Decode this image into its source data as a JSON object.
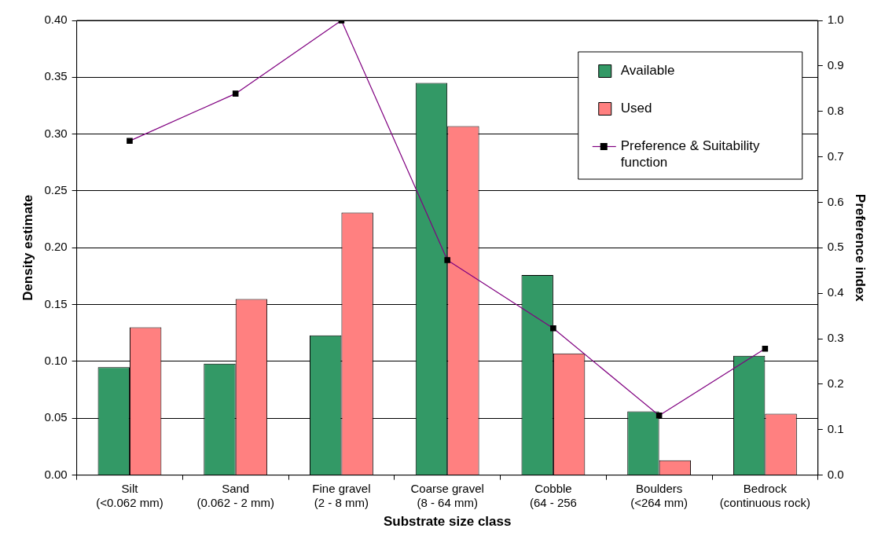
{
  "chart_data": {
    "type": "bar",
    "xlabel": "Substrate size class",
    "ylabel": "Density estimate",
    "y2label": "Preference index",
    "categories": [
      "Silt\n(<0.062 mm)",
      "Sand\n(0.062 - 2 mm)",
      "Fine gravel\n(2 - 8 mm)",
      "Coarse gravel\n(8 - 64 mm)",
      "Cobble\n(64 - 256",
      "Boulders\n(<264 mm)",
      "Bedrock\n(continuous rock)"
    ],
    "series": [
      {
        "name": "Available",
        "color": "#339966",
        "values": [
          0.095,
          0.098,
          0.123,
          0.345,
          0.176,
          0.056,
          0.105
        ]
      },
      {
        "name": "Used",
        "color": "#ff8080",
        "values": [
          0.13,
          0.155,
          0.231,
          0.307,
          0.107,
          0.013,
          0.054
        ]
      },
      {
        "name": "Preference & Suitability function",
        "type": "line",
        "axis": "y2",
        "color": "#800080",
        "marker": "square",
        "values": [
          0.735,
          0.839,
          1.0,
          0.473,
          0.323,
          0.131,
          0.278
        ]
      }
    ],
    "ylim": [
      0,
      0.4
    ],
    "yticks": [
      {
        "value": 0,
        "label": "0.00"
      },
      {
        "value": 0.05,
        "label": "0.05"
      },
      {
        "value": 0.1,
        "label": "0.10"
      },
      {
        "value": 0.15,
        "label": "0.15"
      },
      {
        "value": 0.2,
        "label": "0.20"
      },
      {
        "value": 0.25,
        "label": "0.25"
      },
      {
        "value": 0.3,
        "label": "0.30"
      },
      {
        "value": 0.35,
        "label": "0.35"
      },
      {
        "value": 0.4,
        "label": "0.40"
      }
    ],
    "y2lim": [
      0,
      1
    ],
    "y2ticks": [
      {
        "value": 0,
        "label": "0.0"
      },
      {
        "value": 0.1,
        "label": "0.1"
      },
      {
        "value": 0.2,
        "label": "0.2"
      },
      {
        "value": 0.3,
        "label": "0.3"
      },
      {
        "value": 0.4,
        "label": "0.4"
      },
      {
        "value": 0.5,
        "label": "0.5"
      },
      {
        "value": 0.6,
        "label": "0.6"
      },
      {
        "value": 0.7,
        "label": "0.7"
      },
      {
        "value": 0.8,
        "label": "0.8"
      },
      {
        "value": 0.9,
        "label": "0.9"
      },
      {
        "value": 1,
        "label": "1.0"
      }
    ],
    "grid": "y",
    "legend": "top right"
  }
}
